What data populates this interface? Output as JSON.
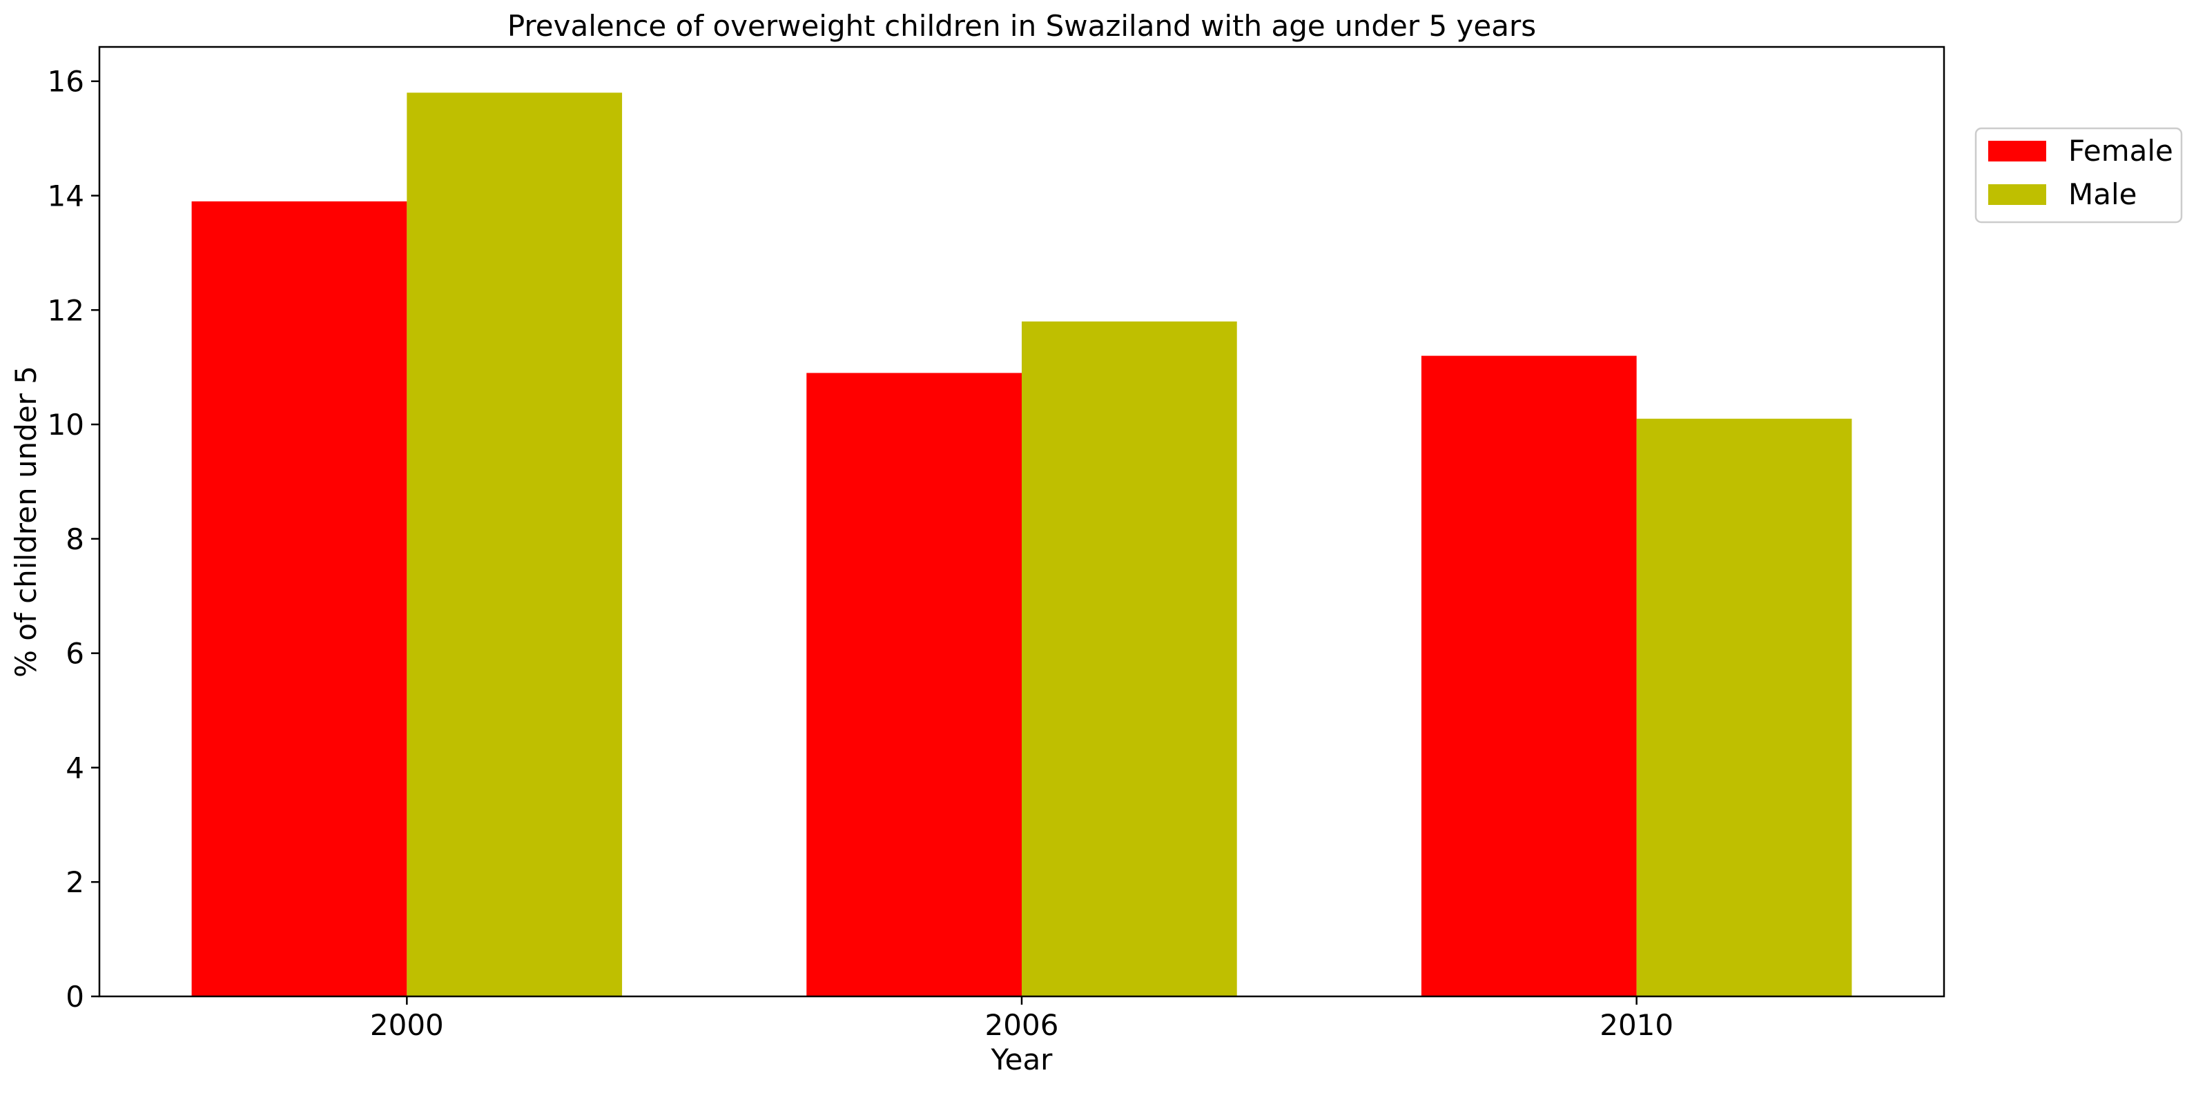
{
  "chart_data": {
    "type": "bar",
    "title": "Prevalence of overweight children in Swaziland with age under 5 years",
    "xlabel": "Year",
    "ylabel": "% of children under 5",
    "categories": [
      "2000",
      "2006",
      "2010"
    ],
    "series": [
      {
        "name": "Female",
        "color": "#ff0000",
        "values": [
          13.9,
          10.9,
          11.2
        ]
      },
      {
        "name": "Male",
        "color": "#bfbf00",
        "values": [
          15.8,
          11.8,
          10.1
        ]
      }
    ],
    "ylim": [
      0,
      16.6
    ],
    "yticks": [
      0,
      2,
      4,
      6,
      8,
      10,
      12,
      14,
      16
    ],
    "grid": false,
    "legend_position": "outside-top-right"
  }
}
